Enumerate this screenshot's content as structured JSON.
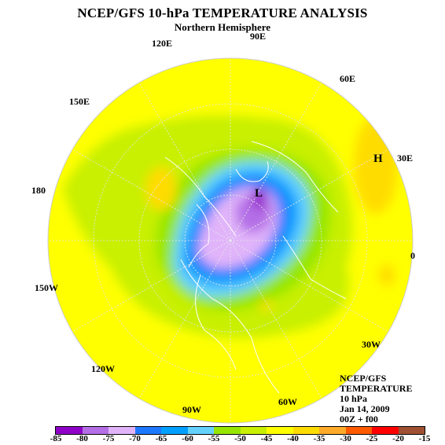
{
  "title": "NCEP/GFS 10-hPa TEMPERATURE ANALYSIS",
  "subtitle": "Northern Hemisphere",
  "longitude_labels": [
    "90E",
    "120E",
    "60E",
    "150E",
    "30E",
    "180",
    "0",
    "150W",
    "30W",
    "120W",
    "90W",
    "60W"
  ],
  "markers": {
    "high": "H",
    "low": "L"
  },
  "info": {
    "model": "NCEP/GFS",
    "field": "TEMPERATURE",
    "level": "10 hPa",
    "date": "Jan 14, 2009",
    "run": "00Z + f00"
  },
  "colorbar": {
    "labels": [
      "-85",
      "-80",
      "-75",
      "-70",
      "-65",
      "-60",
      "-55",
      "-50",
      "-45",
      "-40",
      "-35",
      "-30",
      "-25",
      "-20",
      "-15"
    ],
    "colors": [
      "#8f00c8",
      "#b46ee6",
      "#e1b4fa",
      "#1e78ff",
      "#00a0ff",
      "#64d2ff",
      "#96e600",
      "#c8f000",
      "#ffff00",
      "#ffdc00",
      "#ffaa28",
      "#ff5a00",
      "#ff0000",
      "#a05032"
    ]
  }
}
